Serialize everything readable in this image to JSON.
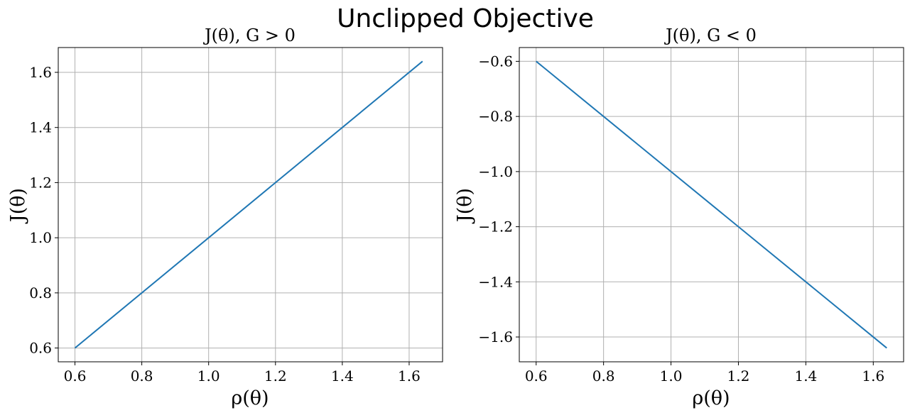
{
  "figure_title": "Unclipped Objective",
  "chart_data": [
    {
      "type": "line",
      "title": "J(θ), G > 0",
      "xlabel": "ρ(θ)",
      "ylabel": "J(θ)",
      "xlim": [
        0.55,
        1.7
      ],
      "ylim": [
        0.55,
        1.69
      ],
      "xticks": [
        0.6,
        0.8,
        1.0,
        1.2,
        1.4,
        1.6
      ],
      "yticks": [
        0.6,
        0.8,
        1.0,
        1.2,
        1.4,
        1.6
      ],
      "xtick_labels": [
        "0.6",
        "0.8",
        "1.0",
        "1.2",
        "1.4",
        "1.6"
      ],
      "ytick_labels": [
        "0.6",
        "0.8",
        "1.0",
        "1.2",
        "1.4",
        "1.6"
      ],
      "grid": true,
      "series": [
        {
          "color": "#1f77b4",
          "x": [
            0.6,
            1.64
          ],
          "y": [
            0.6,
            1.64
          ]
        }
      ]
    },
    {
      "type": "line",
      "title": "J(θ), G < 0",
      "xlabel": "ρ(θ)",
      "ylabel": "J(θ)",
      "xlim": [
        0.55,
        1.69
      ],
      "ylim": [
        -1.69,
        -0.55
      ],
      "xticks": [
        0.6,
        0.8,
        1.0,
        1.2,
        1.4,
        1.6
      ],
      "yticks": [
        -0.6,
        -0.8,
        -1.0,
        -1.2,
        -1.4,
        -1.6
      ],
      "xtick_labels": [
        "0.6",
        "0.8",
        "1.0",
        "1.2",
        "1.4",
        "1.6"
      ],
      "ytick_labels": [
        "−0.6",
        "−0.8",
        "−1.0",
        "−1.2",
        "−1.4",
        "−1.6"
      ],
      "grid": true,
      "series": [
        {
          "color": "#1f77b4",
          "x": [
            0.6,
            1.64
          ],
          "y": [
            -0.6,
            -1.64
          ]
        }
      ]
    }
  ]
}
